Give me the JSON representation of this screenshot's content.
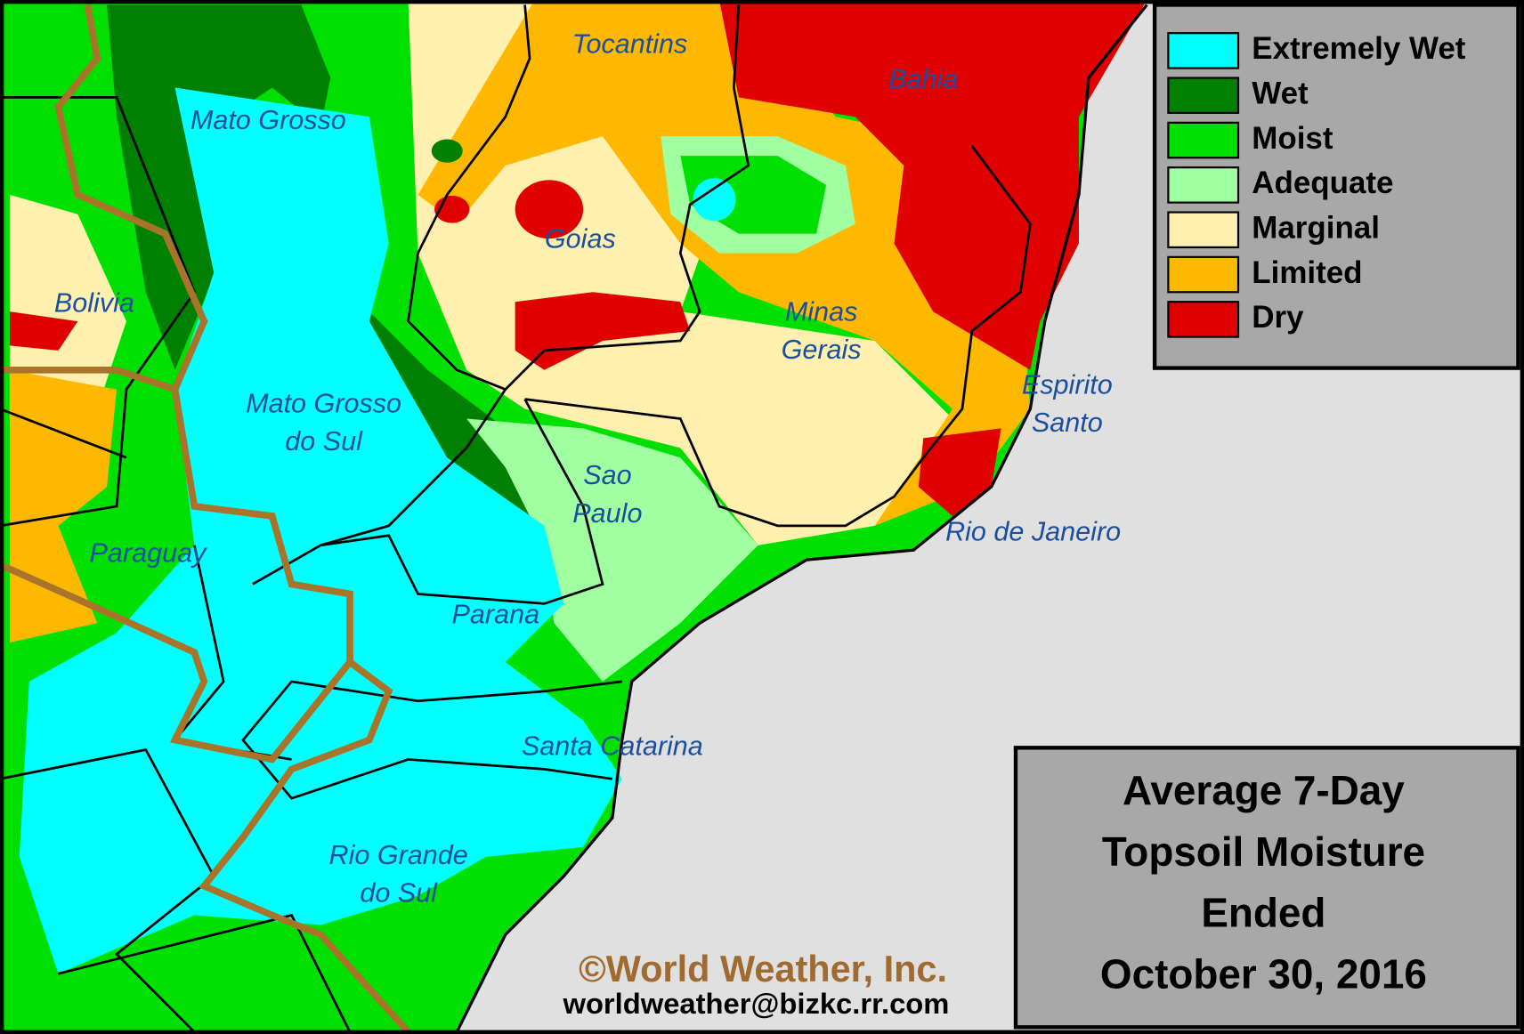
{
  "legend": [
    {
      "label": "Extremely Wet",
      "color": "#00ffff"
    },
    {
      "label": "Wet",
      "color": "#008000"
    },
    {
      "label": "Moist",
      "color": "#00e000"
    },
    {
      "label": "Adequate",
      "color": "#a0ffa0"
    },
    {
      "label": "Marginal",
      "color": "#fff0b0"
    },
    {
      "label": "Limited",
      "color": "#ffb800"
    },
    {
      "label": "Dry",
      "color": "#e00000"
    }
  ],
  "regions": [
    [
      "Tocantins"
    ],
    [
      "Bahia"
    ],
    [
      "Mato Grosso"
    ],
    [
      "Goias"
    ],
    [
      "Bolivia"
    ],
    [
      "Minas",
      "Gerais"
    ],
    [
      "Mato Grosso",
      "do Sul"
    ],
    [
      "Espirito",
      "Santo"
    ],
    [
      "Sao",
      "Paulo"
    ],
    [
      "Rio de Janeiro"
    ],
    [
      "Paraguay"
    ],
    [
      "Parana"
    ],
    [
      "Santa Catarina"
    ],
    [
      "Rio Grande",
      "do Sul"
    ]
  ],
  "title_lines": [
    "Average 7-Day",
    "Topsoil Moisture",
    "Ended",
    "October 30, 2016"
  ],
  "credit": "©World Weather, Inc.",
  "email": "worldweather@bizkc.rr.com"
}
